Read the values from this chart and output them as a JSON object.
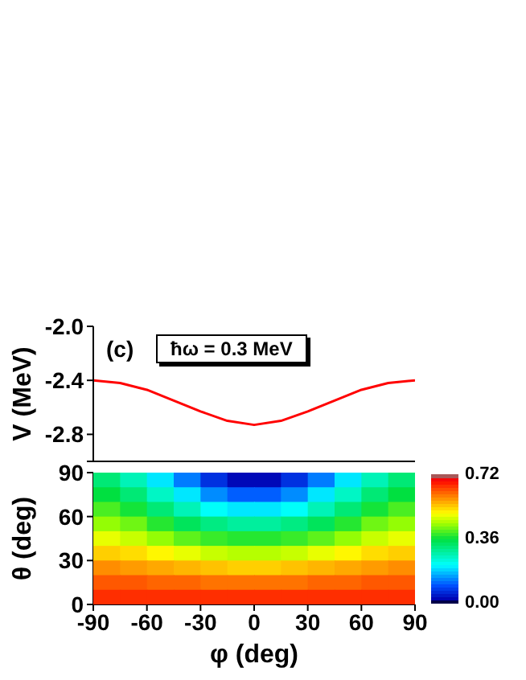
{
  "chart_data": [
    {
      "type": "line",
      "annotations": [
        "(c)",
        "ħω = 0.3 MeV"
      ],
      "x": [
        -90,
        -75,
        -60,
        -45,
        -30,
        -15,
        0,
        15,
        30,
        45,
        60,
        75,
        90
      ],
      "series": [
        {
          "color": "#ff0000",
          "values": [
            -2.4,
            -2.42,
            -2.47,
            -2.55,
            -2.63,
            -2.7,
            -2.73,
            -2.7,
            -2.63,
            -2.55,
            -2.47,
            -2.42,
            -2.4
          ]
        }
      ],
      "xlim": [
        -90,
        90
      ],
      "xticks": [
        -90,
        -60,
        -30,
        0,
        30,
        60,
        90
      ],
      "ylim": [
        -3.0,
        -2.0
      ],
      "yticks": [
        {
          "value": -3.0,
          "label": null
        },
        {
          "value": -2.0,
          "label": "-2.0"
        },
        -2.4,
        -2.8
      ],
      "ylabel": "V (MeV)",
      "tick_labels": "y"
    },
    {
      "type": "scatter",
      "marker": "square",
      "x": [
        -82.5,
        -67.5,
        -52.5,
        -37.5,
        -22.5,
        -7.5,
        7.5,
        22.5,
        37.5,
        52.5,
        67.5,
        82.5,
        -82.5,
        -67.5,
        -52.5,
        -37.5,
        -22.5,
        -7.5,
        7.5,
        22.5,
        37.5,
        52.5,
        67.5,
        82.5,
        -82.5,
        -67.5,
        -52.5,
        -37.5,
        -22.5,
        -7.5,
        7.5,
        22.5,
        37.5,
        52.5,
        67.5,
        82.5,
        -82.5,
        -67.5,
        -52.5,
        -37.5,
        -22.5,
        -7.5,
        7.5,
        22.5,
        37.5,
        52.5,
        67.5,
        82.5,
        -82.5,
        -67.5,
        -52.5,
        -37.5,
        -22.5,
        -7.5,
        7.5,
        22.5,
        37.5,
        52.5,
        67.5,
        82.5,
        -82.5,
        -67.5,
        -52.5,
        -37.5,
        -22.5,
        -7.5,
        7.5,
        22.5,
        37.5,
        52.5,
        67.5,
        82.5,
        -82.5,
        -67.5,
        -52.5,
        -37.5,
        -22.5,
        -7.5,
        7.5,
        22.5,
        37.5,
        52.5,
        67.5,
        82.5,
        -82.5,
        -67.5,
        -52.5,
        -37.5,
        -22.5,
        -7.5,
        7.5,
        22.5,
        37.5,
        52.5,
        67.5,
        82.5,
        -82.5,
        -67.5,
        -52.5,
        -37.5,
        -22.5,
        -7.5,
        7.5,
        22.5,
        37.5,
        52.5,
        67.5,
        82.5
      ],
      "values": [
        85,
        85,
        85,
        85,
        85,
        85,
        85,
        85,
        85,
        85,
        85,
        85,
        75,
        75,
        75,
        75,
        75,
        75,
        75,
        75,
        75,
        75,
        75,
        75,
        65,
        65,
        65,
        65,
        65,
        65,
        65,
        65,
        65,
        65,
        65,
        65,
        55,
        55,
        55,
        55,
        55,
        55,
        55,
        55,
        55,
        55,
        55,
        55,
        45,
        45,
        45,
        45,
        45,
        45,
        45,
        45,
        45,
        45,
        45,
        45,
        35,
        35,
        35,
        35,
        35,
        35,
        35,
        35,
        35,
        35,
        35,
        35,
        25,
        25,
        25,
        25,
        25,
        25,
        25,
        25,
        25,
        25,
        25,
        25,
        15,
        15,
        15,
        15,
        15,
        15,
        15,
        15,
        15,
        15,
        15,
        15,
        5,
        5,
        5,
        5,
        5,
        5,
        5,
        5,
        5,
        5,
        5,
        5
      ],
      "cvalues": [
        0.32,
        0.27,
        0.2,
        0.13,
        0.07,
        0.03,
        0.03,
        0.07,
        0.13,
        0.2,
        0.27,
        0.32,
        0.36,
        0.32,
        0.26,
        0.2,
        0.14,
        0.11,
        0.11,
        0.14,
        0.2,
        0.26,
        0.32,
        0.36,
        0.4,
        0.37,
        0.32,
        0.27,
        0.22,
        0.2,
        0.2,
        0.22,
        0.27,
        0.32,
        0.37,
        0.4,
        0.44,
        0.42,
        0.38,
        0.34,
        0.31,
        0.29,
        0.29,
        0.31,
        0.34,
        0.38,
        0.42,
        0.44,
        0.49,
        0.47,
        0.44,
        0.41,
        0.39,
        0.38,
        0.38,
        0.39,
        0.41,
        0.44,
        0.47,
        0.49,
        0.54,
        0.53,
        0.51,
        0.49,
        0.47,
        0.46,
        0.46,
        0.47,
        0.49,
        0.51,
        0.53,
        0.54,
        0.59,
        0.58,
        0.57,
        0.56,
        0.55,
        0.54,
        0.54,
        0.55,
        0.56,
        0.57,
        0.58,
        0.59,
        0.63,
        0.63,
        0.62,
        0.62,
        0.61,
        0.61,
        0.61,
        0.61,
        0.62,
        0.62,
        0.63,
        0.63,
        0.66,
        0.66,
        0.66,
        0.66,
        0.66,
        0.66,
        0.66,
        0.66,
        0.66,
        0.66,
        0.66,
        0.66
      ],
      "xlim": [
        -90,
        90
      ],
      "xticks": [
        -90,
        -60,
        -30,
        0,
        30,
        60,
        90
      ],
      "ylim": [
        0,
        90
      ],
      "yticks": [
        0,
        30,
        60,
        90
      ],
      "xlabel": "φ (deg)",
      "ylabel": "θ (deg)",
      "clim": [
        0,
        0.72
      ],
      "cticks": [
        {
          "value": 0,
          "label": "0.00"
        },
        0.36,
        0.72
      ]
    }
  ]
}
